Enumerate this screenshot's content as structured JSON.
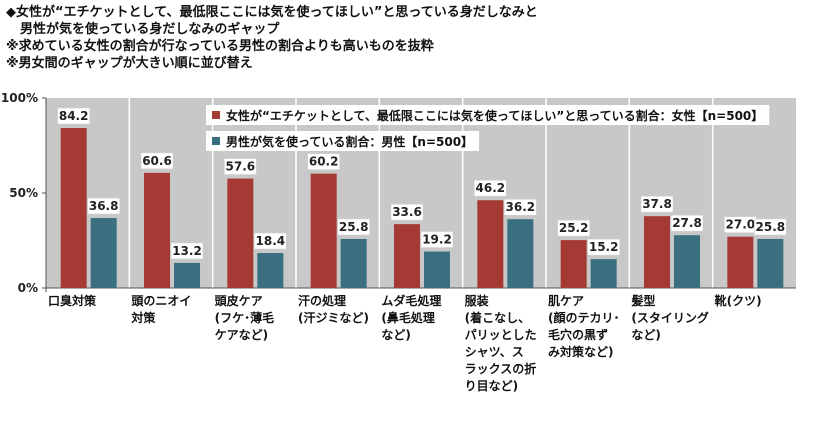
{
  "header": {
    "lines": [
      "◆女性が“エチケットとして、最低限ここには気を使ってほしい”と思っている身だしなみと",
      "男性が気を使っている身だしなみのギャップ",
      "※求めている女性の割合が行なっている男性の割合よりも高いものを抜粋",
      "※男女間のギャップが大きい順に並び替え"
    ]
  },
  "chart_data": {
    "type": "bar",
    "title": "",
    "xlabel": "",
    "ylabel": "",
    "ylim": [
      0,
      100
    ],
    "y_ticks": [
      "0%",
      "50%",
      "100%"
    ],
    "y_tick_values": [
      0,
      50,
      100
    ],
    "grid": false,
    "legend_position": "top-right",
    "categories": [
      [
        "口臭対策"
      ],
      [
        "頭のニオイ",
        "対策"
      ],
      [
        "頭皮ケア",
        "(フケ･薄毛",
        "ケアなど)"
      ],
      [
        "汗の処理",
        "(汗ジミなど)"
      ],
      [
        "ムダ毛処理",
        "(鼻毛処理",
        "など)"
      ],
      [
        "服装",
        "(着こなし、",
        "パリッとした",
        "シャツ、ス",
        "ラックスの折",
        "り目など)"
      ],
      [
        "肌ケア",
        "(顔のテカリ･",
        "毛穴の黒ず",
        "み対策など)"
      ],
      [
        "髪型",
        "(スタイリング",
        "など)"
      ],
      [
        "靴(クツ)"
      ]
    ],
    "series": [
      {
        "name": "女性が“エチケットとして、最低限ここには気を使ってほしい”と思っている割合：女性【n=500】",
        "color": "#a53a34",
        "values": [
          84.2,
          60.6,
          57.6,
          60.2,
          33.6,
          46.2,
          25.2,
          37.8,
          27.0
        ],
        "labels": [
          "84.2",
          "60.6",
          "57.6",
          "60.2",
          "33.6",
          "46.2",
          "25.2",
          "37.8",
          "27.0"
        ]
      },
      {
        "name": "男性が気を使っている割合：男性【n=500】",
        "color": "#3a6f80",
        "values": [
          36.8,
          13.2,
          18.4,
          25.8,
          19.2,
          36.2,
          15.2,
          27.8,
          25.8
        ],
        "labels": [
          "36.8",
          "13.2",
          "18.4",
          "25.8",
          "19.2",
          "36.2",
          "15.2",
          "27.8",
          "25.8"
        ]
      }
    ],
    "colors": {
      "plot_background": "#c8c8c8",
      "label_box": "#ffffff"
    }
  }
}
